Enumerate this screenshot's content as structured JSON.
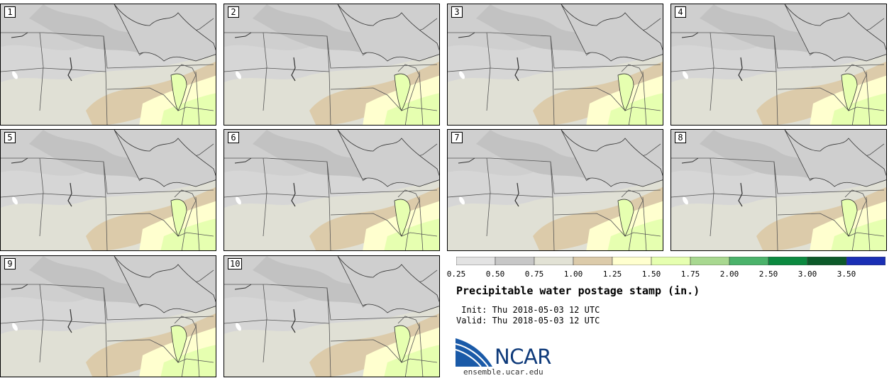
{
  "panels": [
    {
      "label": "1"
    },
    {
      "label": "2"
    },
    {
      "label": "3"
    },
    {
      "label": "4"
    },
    {
      "label": "5"
    },
    {
      "label": "6"
    },
    {
      "label": "7"
    },
    {
      "label": "8"
    },
    {
      "label": "9"
    },
    {
      "label": "10"
    }
  ],
  "colorbar": {
    "tick_labels": [
      "0.25",
      "0.50",
      "0.75",
      "1.00",
      "1.25",
      "1.50",
      "1.75",
      "2.00",
      "2.50",
      "3.00",
      "3.50"
    ],
    "colors": [
      "#e3e3e3",
      "#c7c7c7",
      "#e2e2d5",
      "#dccbaa",
      "#ffffcf",
      "#e6ffb0",
      "#a8d890",
      "#4bb36b",
      "#0c8a40",
      "#0d5a2a",
      "#1a2fb5"
    ]
  },
  "title": "Precipitable water postage stamp (in.)",
  "init_line": " Init: Thu 2018-05-03 12 UTC",
  "valid_line": "Valid: Thu 2018-05-03 12 UTC",
  "logo": {
    "name": "NCAR",
    "url": "ensemble.ucar.edu"
  }
}
